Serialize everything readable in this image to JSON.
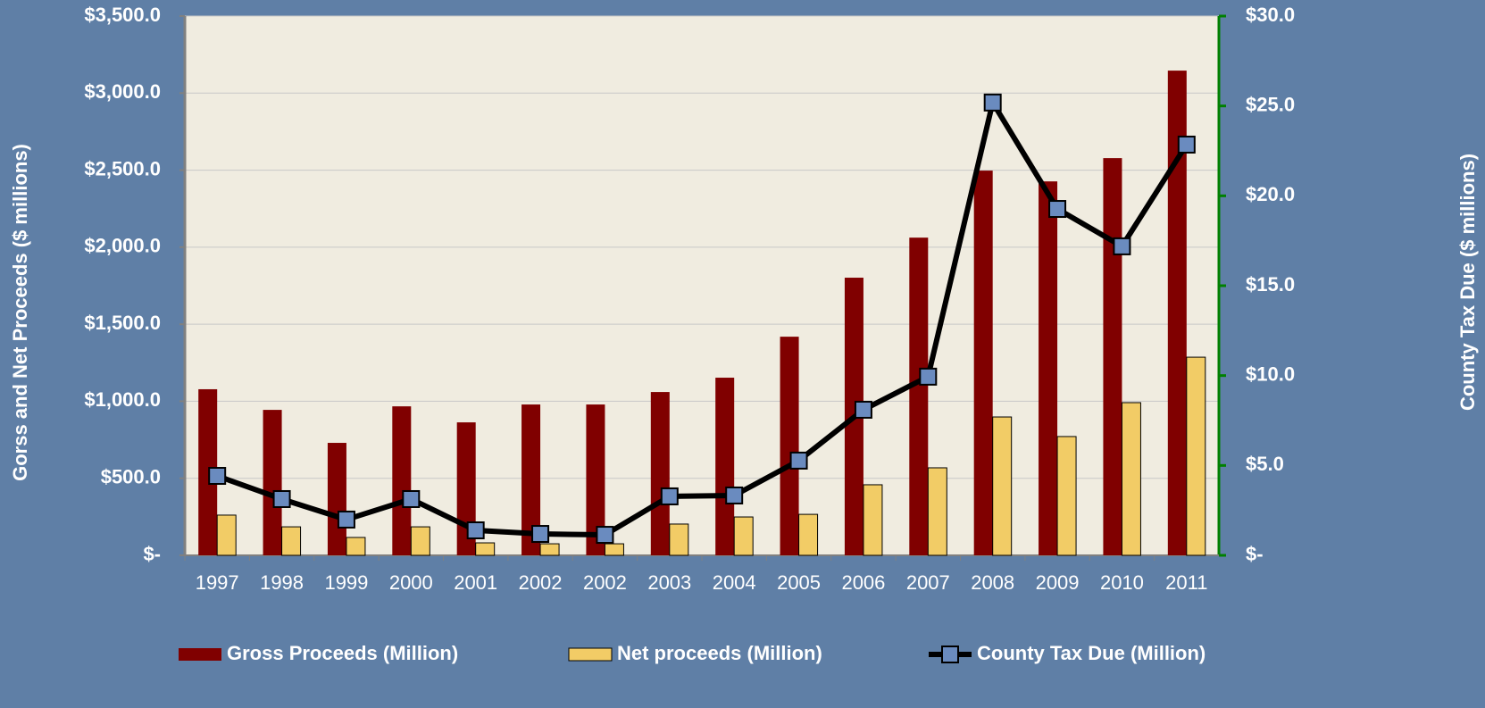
{
  "chart_data": {
    "type": "bar",
    "categories": [
      "1997",
      "1998",
      "1999",
      "2000",
      "2001",
      "2002",
      "2002",
      "2003",
      "2004",
      "2005",
      "2006",
      "2007",
      "2008",
      "2009",
      "2010",
      "2011"
    ],
    "series": [
      {
        "name": "Gross Proceeds (Million)",
        "color": "#800000",
        "type": "bar",
        "values": [
          1078,
          944,
          730,
          967,
          863,
          979,
          979,
          1060,
          1153,
          1419,
          1802,
          2062,
          2497,
          2427,
          2578,
          3146
        ]
      },
      {
        "name": "Net proceeds (Million)",
        "color": "#f2cc66",
        "type": "bar",
        "values": [
          261,
          185,
          116,
          185,
          81,
          75,
          75,
          203,
          249,
          266,
          458,
          568,
          898,
          771,
          991,
          1286
        ]
      },
      {
        "name": "County Tax Due (Million)",
        "color": "#000000",
        "marker_color": "#6a8bbf",
        "type": "line",
        "axis": "y2",
        "values": [
          4.42,
          3.13,
          1.99,
          3.13,
          1.39,
          1.19,
          1.14,
          3.28,
          3.33,
          5.27,
          8.1,
          9.94,
          25.19,
          19.27,
          17.19,
          22.85
        ]
      }
    ],
    "ylabel": "Gorss and Net Proceeds ($ millions)",
    "y2label": "County Tax Due ($ millions)",
    "ylim": [
      0,
      3500
    ],
    "yticks": [
      {
        "value": 0,
        "label": "$-"
      },
      {
        "value": 500,
        "label": "$500.0"
      },
      {
        "value": 1000,
        "label": "$1,000.0"
      },
      {
        "value": 1500,
        "label": "$1,500.0"
      },
      {
        "value": 2000,
        "label": "$2,000.0"
      },
      {
        "value": 2500,
        "label": "$2,500.0"
      },
      {
        "value": 3000,
        "label": "$3,000.0"
      },
      {
        "value": 3500,
        "label": "$3,500.0"
      }
    ],
    "y2lim": [
      0,
      30
    ],
    "y2ticks": [
      {
        "value": 0,
        "label": "$-"
      },
      {
        "value": 5,
        "label": "$5.0"
      },
      {
        "value": 10,
        "label": "$10.0"
      },
      {
        "value": 15,
        "label": "$15.0"
      },
      {
        "value": 20,
        "label": "$20.0"
      },
      {
        "value": 25,
        "label": "$25.0"
      },
      {
        "value": 30,
        "label": "$30.0"
      }
    ],
    "grid": true,
    "legend": "bottom"
  }
}
